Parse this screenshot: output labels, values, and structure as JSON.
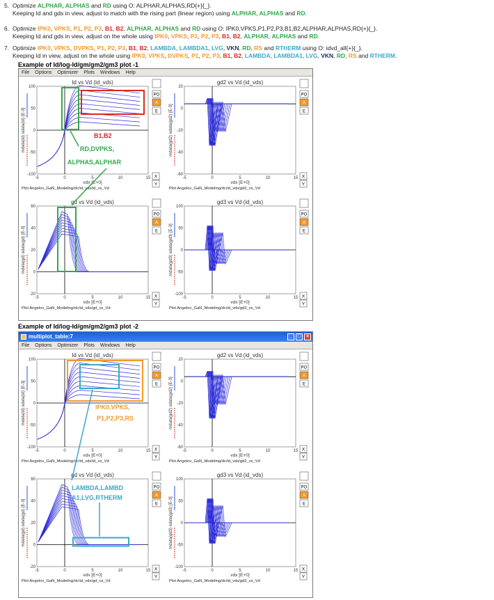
{
  "steps": [
    {
      "n": "5.",
      "l1": [
        [
          "Optimize ",
          ""
        ],
        [
          "ALPHAR, ALPHAS",
          "g"
        ],
        [
          " and ",
          ""
        ],
        [
          "RD",
          "g"
        ],
        [
          " using O: ALPHAR,ALPHAS,RD{+}{_}.",
          ""
        ]
      ],
      "l2": [
        [
          "Keeping Id and gds in view, adjust to match with the rising part (linear region) using ",
          ""
        ],
        [
          "ALPHAR, ALPHAS",
          "g"
        ],
        [
          " and ",
          ""
        ],
        [
          "RD",
          "g"
        ],
        [
          ".",
          ""
        ]
      ]
    },
    {
      "n": "6.",
      "l1": [
        [
          "Optimize ",
          ""
        ],
        [
          "IPK0",
          "o"
        ],
        [
          ", ",
          ""
        ],
        [
          "VPKS",
          "o"
        ],
        [
          ", ",
          ""
        ],
        [
          "P1",
          "o"
        ],
        [
          ", ",
          ""
        ],
        [
          "P2",
          "o"
        ],
        [
          ", ",
          ""
        ],
        [
          "P3",
          "o"
        ],
        [
          ", ",
          ""
        ],
        [
          "B1",
          "r"
        ],
        [
          ", ",
          ""
        ],
        [
          "B2",
          "r"
        ],
        [
          ", ",
          ""
        ],
        [
          "ALPHAR",
          "g"
        ],
        [
          ", ",
          ""
        ],
        [
          "ALPHAS",
          "g"
        ],
        [
          " and ",
          ""
        ],
        [
          "RD",
          "g"
        ],
        [
          " using O: IPK0,VPKS,P1,P2,P3,B1,B2,ALPHAR,ALPHAS,RD{+}{_}.",
          ""
        ]
      ],
      "l2": [
        [
          "Keeping Id and gds in view, adjust on the whole using ",
          ""
        ],
        [
          "IPK0",
          "o"
        ],
        [
          ", ",
          ""
        ],
        [
          "VPKS",
          "o"
        ],
        [
          ", ",
          ""
        ],
        [
          "P1",
          "o"
        ],
        [
          ", ",
          ""
        ],
        [
          "P2",
          "o"
        ],
        [
          ", ",
          ""
        ],
        [
          "P3",
          "o"
        ],
        [
          ", ",
          ""
        ],
        [
          "B1",
          "r"
        ],
        [
          ", ",
          ""
        ],
        [
          "B2",
          "r"
        ],
        [
          ", ",
          ""
        ],
        [
          "ALPHAR",
          "g"
        ],
        [
          ", ",
          ""
        ],
        [
          "ALPHAS",
          "g"
        ],
        [
          " and ",
          ""
        ],
        [
          "RD",
          "g"
        ],
        [
          ".",
          ""
        ]
      ]
    },
    {
      "n": "7.",
      "l1": [
        [
          "Optimize ",
          ""
        ],
        [
          "IPK0",
          "o"
        ],
        [
          ", ",
          ""
        ],
        [
          "VPKS",
          "o"
        ],
        [
          ", ",
          ""
        ],
        [
          "DVPKS",
          "o"
        ],
        [
          ", ",
          ""
        ],
        [
          "P1",
          "o"
        ],
        [
          ", ",
          ""
        ],
        [
          "P2",
          "o"
        ],
        [
          ", ",
          ""
        ],
        [
          "P3",
          "o"
        ],
        [
          ", ",
          ""
        ],
        [
          "B1",
          "r"
        ],
        [
          ", ",
          ""
        ],
        [
          "B2",
          "r"
        ],
        [
          ", ",
          ""
        ],
        [
          "LAMBDA",
          "c"
        ],
        [
          ", ",
          ""
        ],
        [
          "LAMBDA1",
          "c"
        ],
        [
          ", ",
          ""
        ],
        [
          "LVG",
          "c"
        ],
        [
          ", ",
          ""
        ],
        [
          "VKN",
          "b"
        ],
        [
          ", ",
          ""
        ],
        [
          "RD",
          "g"
        ],
        [
          ", ",
          ""
        ],
        [
          "RS",
          "o"
        ],
        [
          " and ",
          ""
        ],
        [
          "RTHERM",
          "c"
        ],
        [
          " using O: idvd_all{+}{_}.",
          ""
        ]
      ],
      "l2": [
        [
          "Keeping Id in view, adjust on the whole using ",
          ""
        ],
        [
          "IPK0",
          "o"
        ],
        [
          ", ",
          ""
        ],
        [
          "VPKS",
          "o"
        ],
        [
          ", ",
          ""
        ],
        [
          "DVPKS",
          "o"
        ],
        [
          ", ",
          ""
        ],
        [
          "P1",
          "o"
        ],
        [
          ", ",
          ""
        ],
        [
          "P2",
          "o"
        ],
        [
          ", ",
          ""
        ],
        [
          "P3",
          "o"
        ],
        [
          ", ",
          ""
        ],
        [
          "B1",
          "r"
        ],
        [
          ", ",
          ""
        ],
        [
          "B2",
          "r"
        ],
        [
          ", ",
          ""
        ],
        [
          "LAMBDA",
          "c"
        ],
        [
          ", ",
          ""
        ],
        [
          "LAMBDA1",
          "c"
        ],
        [
          ", ",
          ""
        ],
        [
          "LVG",
          "c"
        ],
        [
          ", ",
          ""
        ],
        [
          "VKN",
          "b"
        ],
        [
          ", ",
          ""
        ],
        [
          "RD",
          "g"
        ],
        [
          ", ",
          ""
        ],
        [
          "RS",
          "o"
        ],
        [
          " and ",
          ""
        ],
        [
          "RTHERM",
          "c"
        ],
        [
          ".",
          ""
        ]
      ]
    }
  ],
  "example1": "Example of Id/log-Id/gm/gm2/gm3 plot -1",
  "example2": "Example of Id/log-Id/gm/gm2/gm3 plot -2",
  "window2_title": "multiplot_table:7",
  "menu": [
    "File",
    "Options",
    "Optimizer",
    "Plots",
    "Windows",
    "Help"
  ],
  "side_buttons": [
    "PO",
    "A",
    "E"
  ],
  "xy_buttons": [
    "X",
    "Y"
  ],
  "plots": [
    {
      "title": "Id vs Vd (id_vds)",
      "ylabel": "mdata(id) sdata(id) [E-3]",
      "xlabel": "vdx [E+0]",
      "footer": "Plot Angelov_GaN_Modeling/dc/id_vds/id_vs_Vd",
      "yticks": [
        "100",
        "50",
        "0",
        "-50",
        "-100"
      ]
    },
    {
      "title": "gd2 vs Vd (id_vds)",
      "ylabel": "mdata(gd2) sdata(gd2) [E-3]",
      "xlabel": "vdx [E+0]",
      "footer": "Plot Angelov_GaN_Modeling/dc/id_vds/gd2_vs_Vd",
      "yticks": [
        "20",
        "0",
        "-20",
        "-40",
        "-60"
      ]
    },
    {
      "title": "gd vs Vd (id_vds)",
      "ylabel": "mdata(gd) sdata(gd) [E-3]",
      "xlabel": "vdx [E+0]",
      "footer": "Plot Angelov_GaN_Modeling/dc/id_vds/gd_vs_Vd",
      "yticks": [
        "60",
        "40",
        "20",
        "0",
        "-20"
      ]
    },
    {
      "title": "gd3 vs Vd (id_vds)",
      "ylabel": "mdata(gd3) sdata(gd3) [E-3]",
      "xlabel": "vdx [E+0]",
      "footer": "Plot Angelov_GaN_Modeling/dc/id_vds/gd3_vs_Vd",
      "yticks": [
        "100",
        "50",
        "0",
        "-50",
        "-100"
      ]
    }
  ],
  "xticks": [
    "-5",
    "0",
    "5",
    "10",
    "15"
  ],
  "annotations1": {
    "b1b2": "B1,B2",
    "rd": "RD,DVPKS,",
    "alphas": "ALPHAS,ALPHAR"
  },
  "annotations2": {
    "ipk": "IPK0,VPKS,",
    "p123": "P1,P2,P3,RS",
    "lam1": "LAMBDA,LAMBD",
    "lam2": "A1,LVG,RTHERM"
  },
  "colors": {
    "green": "#2ea84a",
    "red": "#d9281f",
    "orange": "#f39a2b",
    "cyan": "#39a8c9",
    "curve": "#2b2bd8"
  }
}
